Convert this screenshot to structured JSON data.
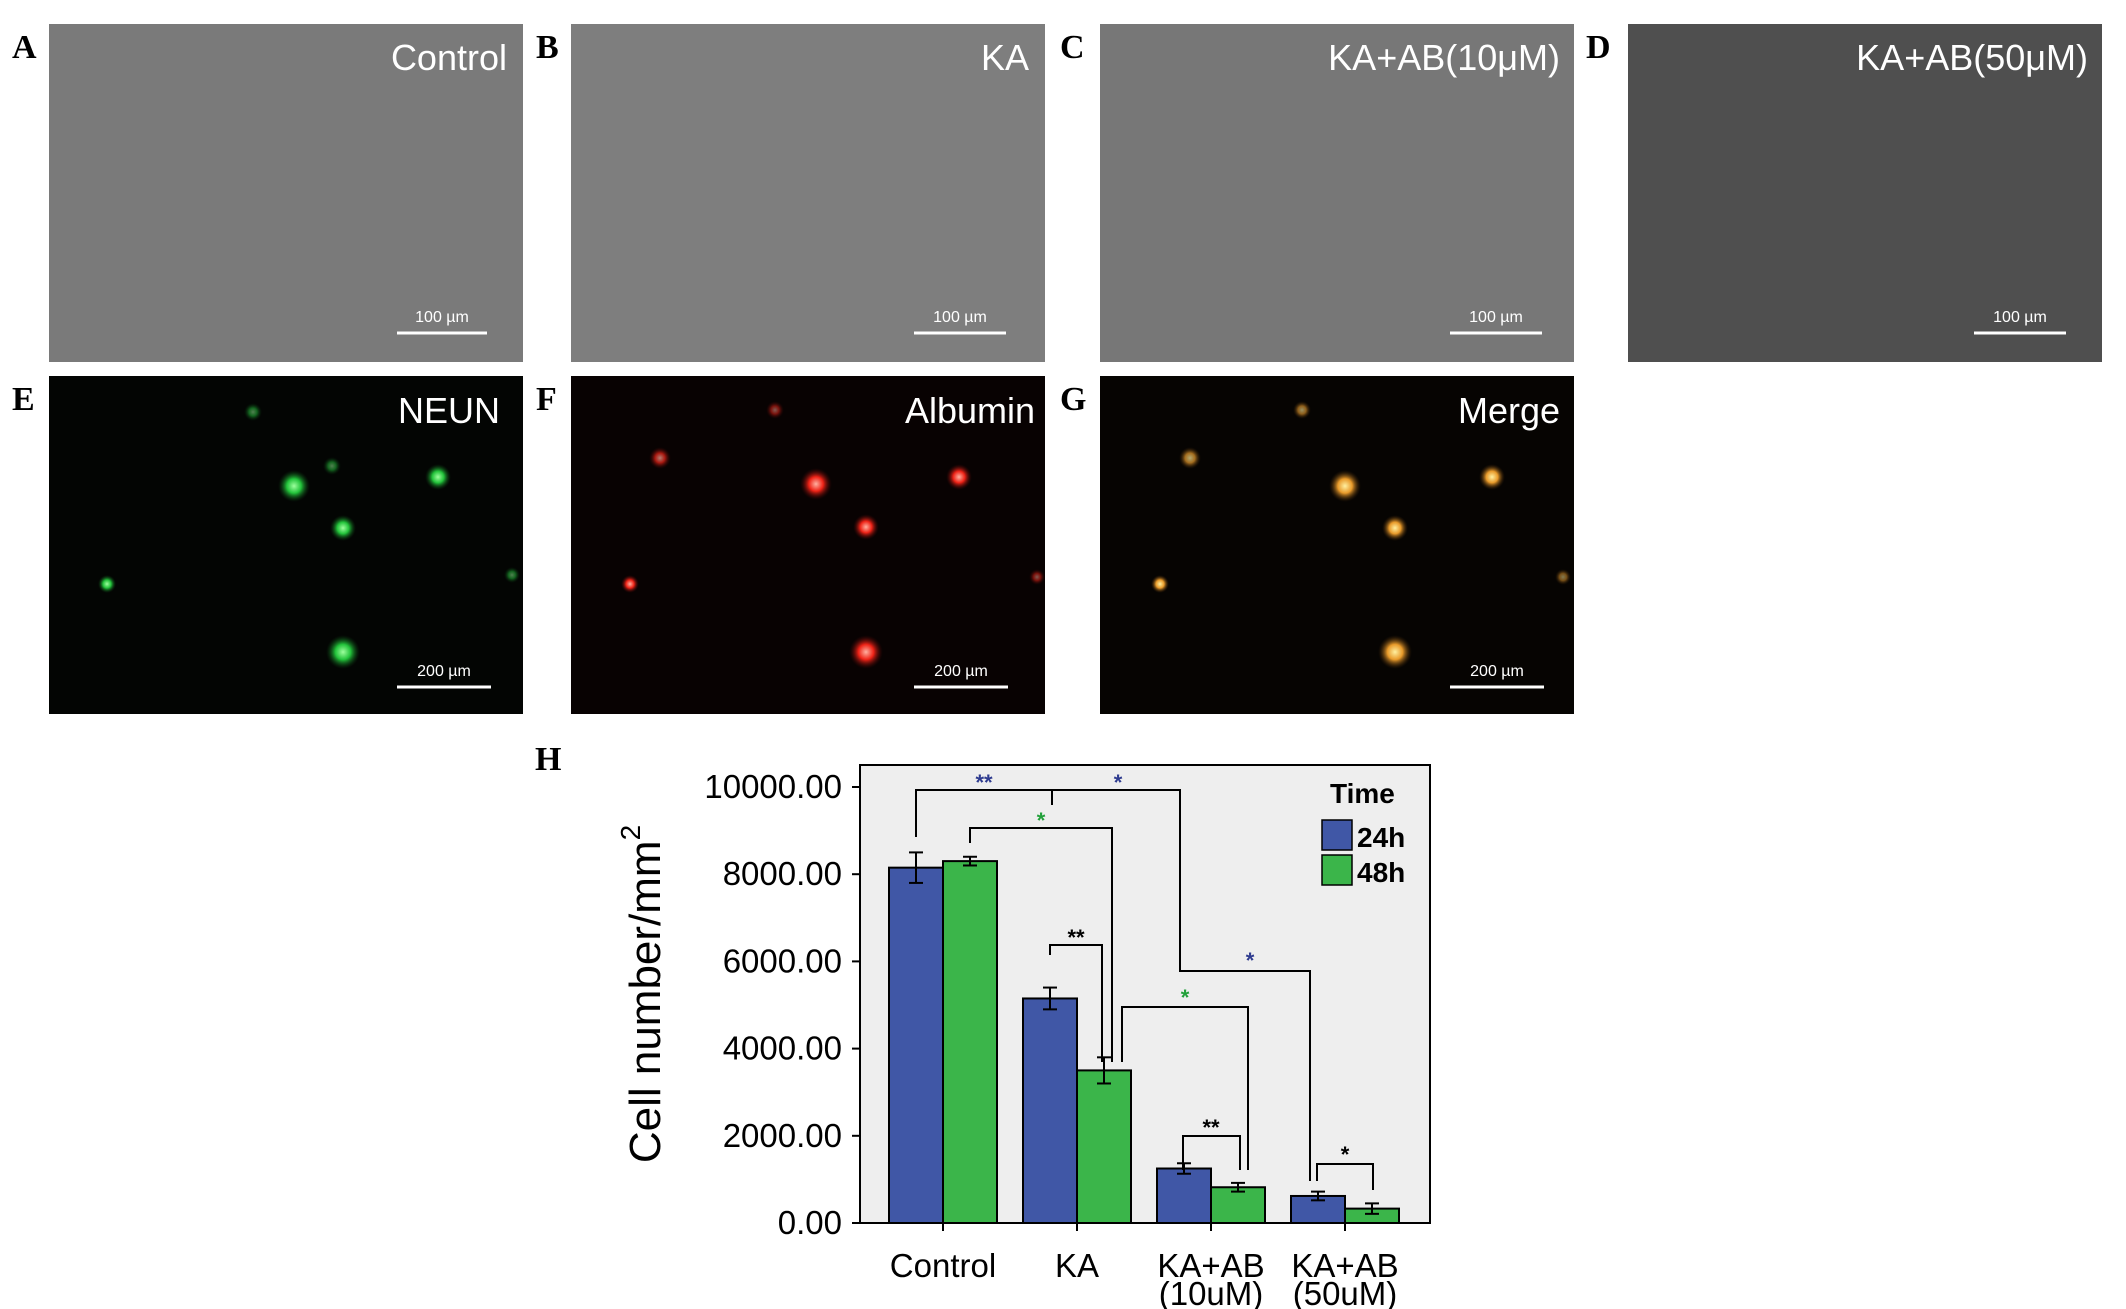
{
  "panels": [
    {
      "letter": "A",
      "title": "Control",
      "scale": "100 µm"
    },
    {
      "letter": "B",
      "title": "KA",
      "scale": "100 µm"
    },
    {
      "letter": "C",
      "title": "KA+AB(10μM)",
      "scale": "100 µm"
    },
    {
      "letter": "D",
      "title": "KA+AB(50μM)",
      "scale": "100 µm"
    },
    {
      "letter": "E",
      "title": "NEUN",
      "scale": "200 µm"
    },
    {
      "letter": "F",
      "title": "Albumin",
      "scale": "200 µm"
    },
    {
      "letter": "G",
      "title": "Merge",
      "scale": "200 µm"
    }
  ],
  "chart_data": {
    "letter": "H",
    "type": "bar",
    "categories": [
      "Control",
      "KA",
      "KA+AB",
      "KA+AB"
    ],
    "category_sublabels": [
      "",
      "",
      "(10uM)",
      "(50uM)"
    ],
    "series": [
      {
        "name": "24h",
        "values": [
          8150,
          5150,
          1250,
          620
        ],
        "errors": [
          350,
          250,
          120,
          100
        ]
      },
      {
        "name": "48h",
        "values": [
          8300,
          3500,
          820,
          330
        ],
        "errors": [
          100,
          300,
          100,
          120
        ]
      }
    ],
    "ylabel": "Cell number/mm",
    "ylabel_superscript": "2",
    "yticks": [
      "0.00",
      "2000.00",
      "4000.00",
      "6000.00",
      "8000.00",
      "10000.00"
    ],
    "ylim": [
      0,
      10500
    ],
    "legend_title": "Time",
    "legend_position": "top-right",
    "annotations": [
      "**",
      "*",
      "*",
      "**",
      "*",
      "*",
      "**",
      "*"
    ],
    "colors": {
      "24h": "#4057a6",
      "48h": "#3bb54a",
      "plot_bg": "#eeeeee",
      "sig_blue": "#2e3b8f",
      "sig_green": "#22a03a",
      "sig_black": "#000000"
    }
  }
}
